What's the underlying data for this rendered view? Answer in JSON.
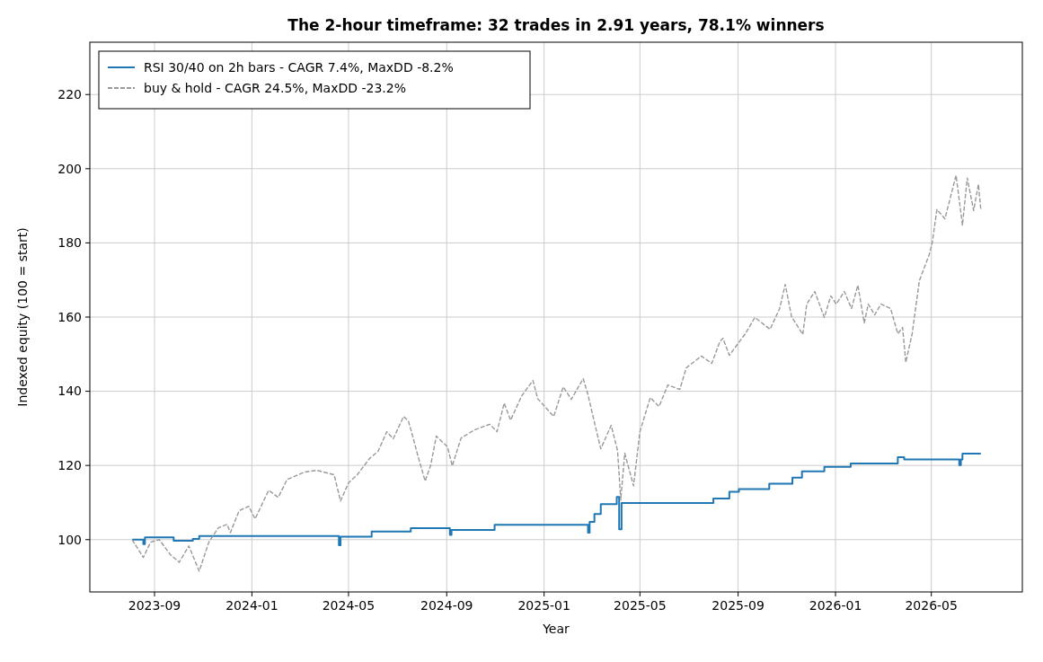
{
  "chart_data": {
    "type": "line",
    "title": "The 2-hour timeframe: 32 trades in 2.91 years, 78.1% winners",
    "xlabel": "Year",
    "ylabel": "Indexed equity (100 = start)",
    "xlim": [
      "2023-06-12",
      "2026-08-23"
    ],
    "ylim": [
      85.9,
      234.1
    ],
    "xticks": [
      "2023-09",
      "2024-01",
      "2024-05",
      "2024-09",
      "2025-01",
      "2025-05",
      "2025-09",
      "2026-01",
      "2026-05"
    ],
    "yticks": [
      100,
      120,
      140,
      160,
      180,
      200,
      220
    ],
    "grid": true,
    "legend": "top left",
    "series": [
      {
        "name": "RSI 30/40 on 2h bars - CAGR 7.4%, MaxDD -8.2%",
        "type": "step",
        "color": "#1f77b4",
        "line_style": "solid",
        "x": [
          "2023-08-04",
          "2023-08-18",
          "2023-08-20",
          "2023-09-25",
          "2023-10-19",
          "2023-10-27",
          "2024-04-19",
          "2024-04-21",
          "2024-05-30",
          "2024-07-18",
          "2024-09-05",
          "2024-09-07",
          "2024-10-31",
          "2025-02-25",
          "2025-02-27",
          "2025-03-05",
          "2025-03-13",
          "2025-04-02",
          "2025-04-05",
          "2025-04-08",
          "2025-08-01",
          "2025-08-21",
          "2025-09-02",
          "2025-10-10",
          "2025-11-08",
          "2025-11-20",
          "2025-12-18",
          "2026-01-20",
          "2026-03-20",
          "2026-03-28",
          "2026-06-05",
          "2026-06-07",
          "2026-06-09",
          "2026-07-02"
        ],
        "values": [
          100,
          98.8,
          100.6,
          99.7,
          100.2,
          101.0,
          98.5,
          100.8,
          102.2,
          103.1,
          101.3,
          102.6,
          104.0,
          101.9,
          104.8,
          106.9,
          109.6,
          111.5,
          102.8,
          109.9,
          111.1,
          112.9,
          113.6,
          115.1,
          116.7,
          118.4,
          119.6,
          120.5,
          122.2,
          121.6,
          120.1,
          121.6,
          123.2,
          123.2
        ]
      },
      {
        "name": "buy & hold - CAGR 24.5%, MaxDD -23.2%",
        "type": "line",
        "color": "#999999",
        "line_style": "dashed",
        "x": [
          "2023-08-04",
          "2023-08-18",
          "2023-08-27",
          "2023-09-07",
          "2023-09-21",
          "2023-10-02",
          "2023-10-14",
          "2023-10-27",
          "2023-11-08",
          "2023-11-20",
          "2023-12-01",
          "2023-12-05",
          "2023-12-16",
          "2023-12-28",
          "2024-01-05",
          "2024-01-22",
          "2024-02-03",
          "2024-02-14",
          "2024-03-07",
          "2024-03-22",
          "2024-04-13",
          "2024-04-21",
          "2024-05-01",
          "2024-05-12",
          "2024-05-27",
          "2024-06-07",
          "2024-06-18",
          "2024-06-26",
          "2024-07-09",
          "2024-07-15",
          "2024-07-21",
          "2024-07-27",
          "2024-08-05",
          "2024-08-12",
          "2024-08-19",
          "2024-09-02",
          "2024-09-08",
          "2024-09-19",
          "2024-10-06",
          "2024-10-25",
          "2024-11-03",
          "2024-11-12",
          "2024-11-20",
          "2024-12-04",
          "2024-12-18",
          "2024-12-24",
          "2025-01-13",
          "2025-01-25",
          "2025-02-04",
          "2025-02-19",
          "2025-02-25",
          "2025-03-07",
          "2025-03-13",
          "2025-03-26",
          "2025-04-03",
          "2025-04-07",
          "2025-04-12",
          "2025-04-23",
          "2025-05-01",
          "2025-05-14",
          "2025-05-25",
          "2025-06-05",
          "2025-06-20",
          "2025-06-28",
          "2025-07-17",
          "2025-07-30",
          "2025-08-09",
          "2025-08-13",
          "2025-08-21",
          "2025-09-10",
          "2025-09-22",
          "2025-10-11",
          "2025-10-23",
          "2025-10-30",
          "2025-11-07",
          "2025-11-21",
          "2025-11-26",
          "2025-12-06",
          "2025-12-18",
          "2025-12-26",
          "2026-01-02",
          "2026-01-12",
          "2026-01-21",
          "2026-01-29",
          "2026-02-06",
          "2026-02-11",
          "2026-02-19",
          "2026-02-27",
          "2026-03-11",
          "2026-03-20",
          "2026-03-26",
          "2026-03-30",
          "2026-04-07",
          "2026-04-16",
          "2026-04-28",
          "2026-05-02",
          "2026-05-08",
          "2026-05-18",
          "2026-06-01",
          "2026-06-09",
          "2026-06-15",
          "2026-06-23",
          "2026-06-29",
          "2026-07-02"
        ],
        "values": [
          100,
          95.2,
          99.3,
          100,
          95.9,
          93.9,
          98.3,
          91.5,
          99.3,
          103.2,
          104.1,
          101.9,
          107.8,
          109.0,
          105.6,
          113.3,
          111.4,
          116.2,
          118.2,
          118.7,
          117.5,
          110.4,
          115.3,
          117.5,
          121.8,
          123.8,
          129.1,
          127.2,
          133.2,
          132.0,
          127.4,
          122.5,
          115.8,
          120.1,
          127.9,
          125.0,
          119.9,
          127.4,
          129.6,
          131.1,
          129.1,
          136.8,
          132.2,
          138.8,
          142.9,
          138.0,
          133.2,
          141.2,
          137.8,
          143.4,
          139.0,
          129.8,
          124.5,
          130.8,
          124.0,
          110.7,
          123.3,
          114.5,
          129.1,
          138.3,
          135.9,
          141.7,
          140.5,
          146.3,
          149.5,
          147.5,
          153.3,
          154.3,
          149.7,
          155.5,
          159.9,
          156.7,
          162.3,
          168.8,
          160.1,
          155.3,
          163.5,
          166.9,
          159.9,
          165.7,
          163.5,
          166.9,
          162.3,
          168.6,
          158.4,
          163.5,
          160.6,
          163.5,
          162.3,
          155.5,
          157.2,
          147.8,
          155.5,
          169.8,
          176.6,
          179.8,
          189.0,
          186.5,
          198.2,
          184.8,
          197.5,
          188.7,
          195.8,
          189.0
        ]
      }
    ]
  }
}
